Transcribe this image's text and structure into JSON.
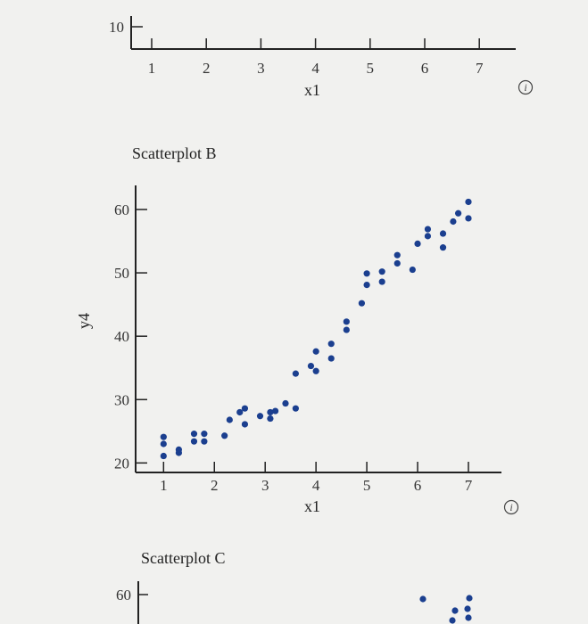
{
  "panels": {
    "top": {
      "y_tick": "10",
      "x_ticks": [
        "1",
        "2",
        "3",
        "4",
        "5",
        "6",
        "7"
      ],
      "xlabel": "x1",
      "info_icon": "info-icon"
    },
    "b": {
      "info_icon": "info-icon"
    },
    "c": {
      "title": "Scatterplot C",
      "y_tick": "60"
    }
  },
  "chart_data": {
    "type": "scatter",
    "title": "Scatterplot B",
    "xlabel": "x1",
    "ylabel": "y4",
    "xlim": [
      0.45,
      7.65
    ],
    "ylim": [
      18.5,
      63.8
    ],
    "x_ticks": [
      1,
      2,
      3,
      4,
      5,
      6,
      7
    ],
    "y_ticks": [
      20,
      30,
      40,
      50,
      60
    ],
    "grid": false,
    "color": "#1b3f8f",
    "points": [
      [
        1.0,
        24.1
      ],
      [
        1.0,
        23.0
      ],
      [
        1.0,
        21.1
      ],
      [
        1.3,
        21.6
      ],
      [
        1.3,
        22.1
      ],
      [
        1.6,
        24.6
      ],
      [
        1.6,
        23.4
      ],
      [
        1.8,
        24.6
      ],
      [
        1.8,
        23.4
      ],
      [
        2.2,
        24.3
      ],
      [
        2.3,
        26.8
      ],
      [
        2.5,
        28.0
      ],
      [
        2.6,
        26.1
      ],
      [
        2.6,
        28.6
      ],
      [
        2.9,
        27.4
      ],
      [
        3.1,
        28.0
      ],
      [
        3.1,
        27.0
      ],
      [
        3.2,
        28.2
      ],
      [
        3.4,
        29.4
      ],
      [
        3.6,
        28.6
      ],
      [
        3.6,
        34.1
      ],
      [
        3.9,
        35.3
      ],
      [
        4.0,
        34.5
      ],
      [
        4.0,
        37.6
      ],
      [
        4.3,
        36.5
      ],
      [
        4.3,
        38.8
      ],
      [
        4.6,
        41.0
      ],
      [
        4.6,
        42.3
      ],
      [
        4.9,
        45.2
      ],
      [
        5.0,
        48.1
      ],
      [
        5.0,
        49.9
      ],
      [
        5.3,
        48.6
      ],
      [
        5.3,
        50.2
      ],
      [
        5.6,
        51.5
      ],
      [
        5.6,
        52.8
      ],
      [
        5.9,
        50.5
      ],
      [
        6.0,
        54.6
      ],
      [
        6.2,
        55.8
      ],
      [
        6.2,
        56.9
      ],
      [
        6.5,
        54.0
      ],
      [
        6.5,
        56.2
      ],
      [
        6.7,
        58.1
      ],
      [
        6.8,
        59.4
      ],
      [
        7.0,
        58.6
      ],
      [
        7.0,
        61.2
      ]
    ]
  }
}
